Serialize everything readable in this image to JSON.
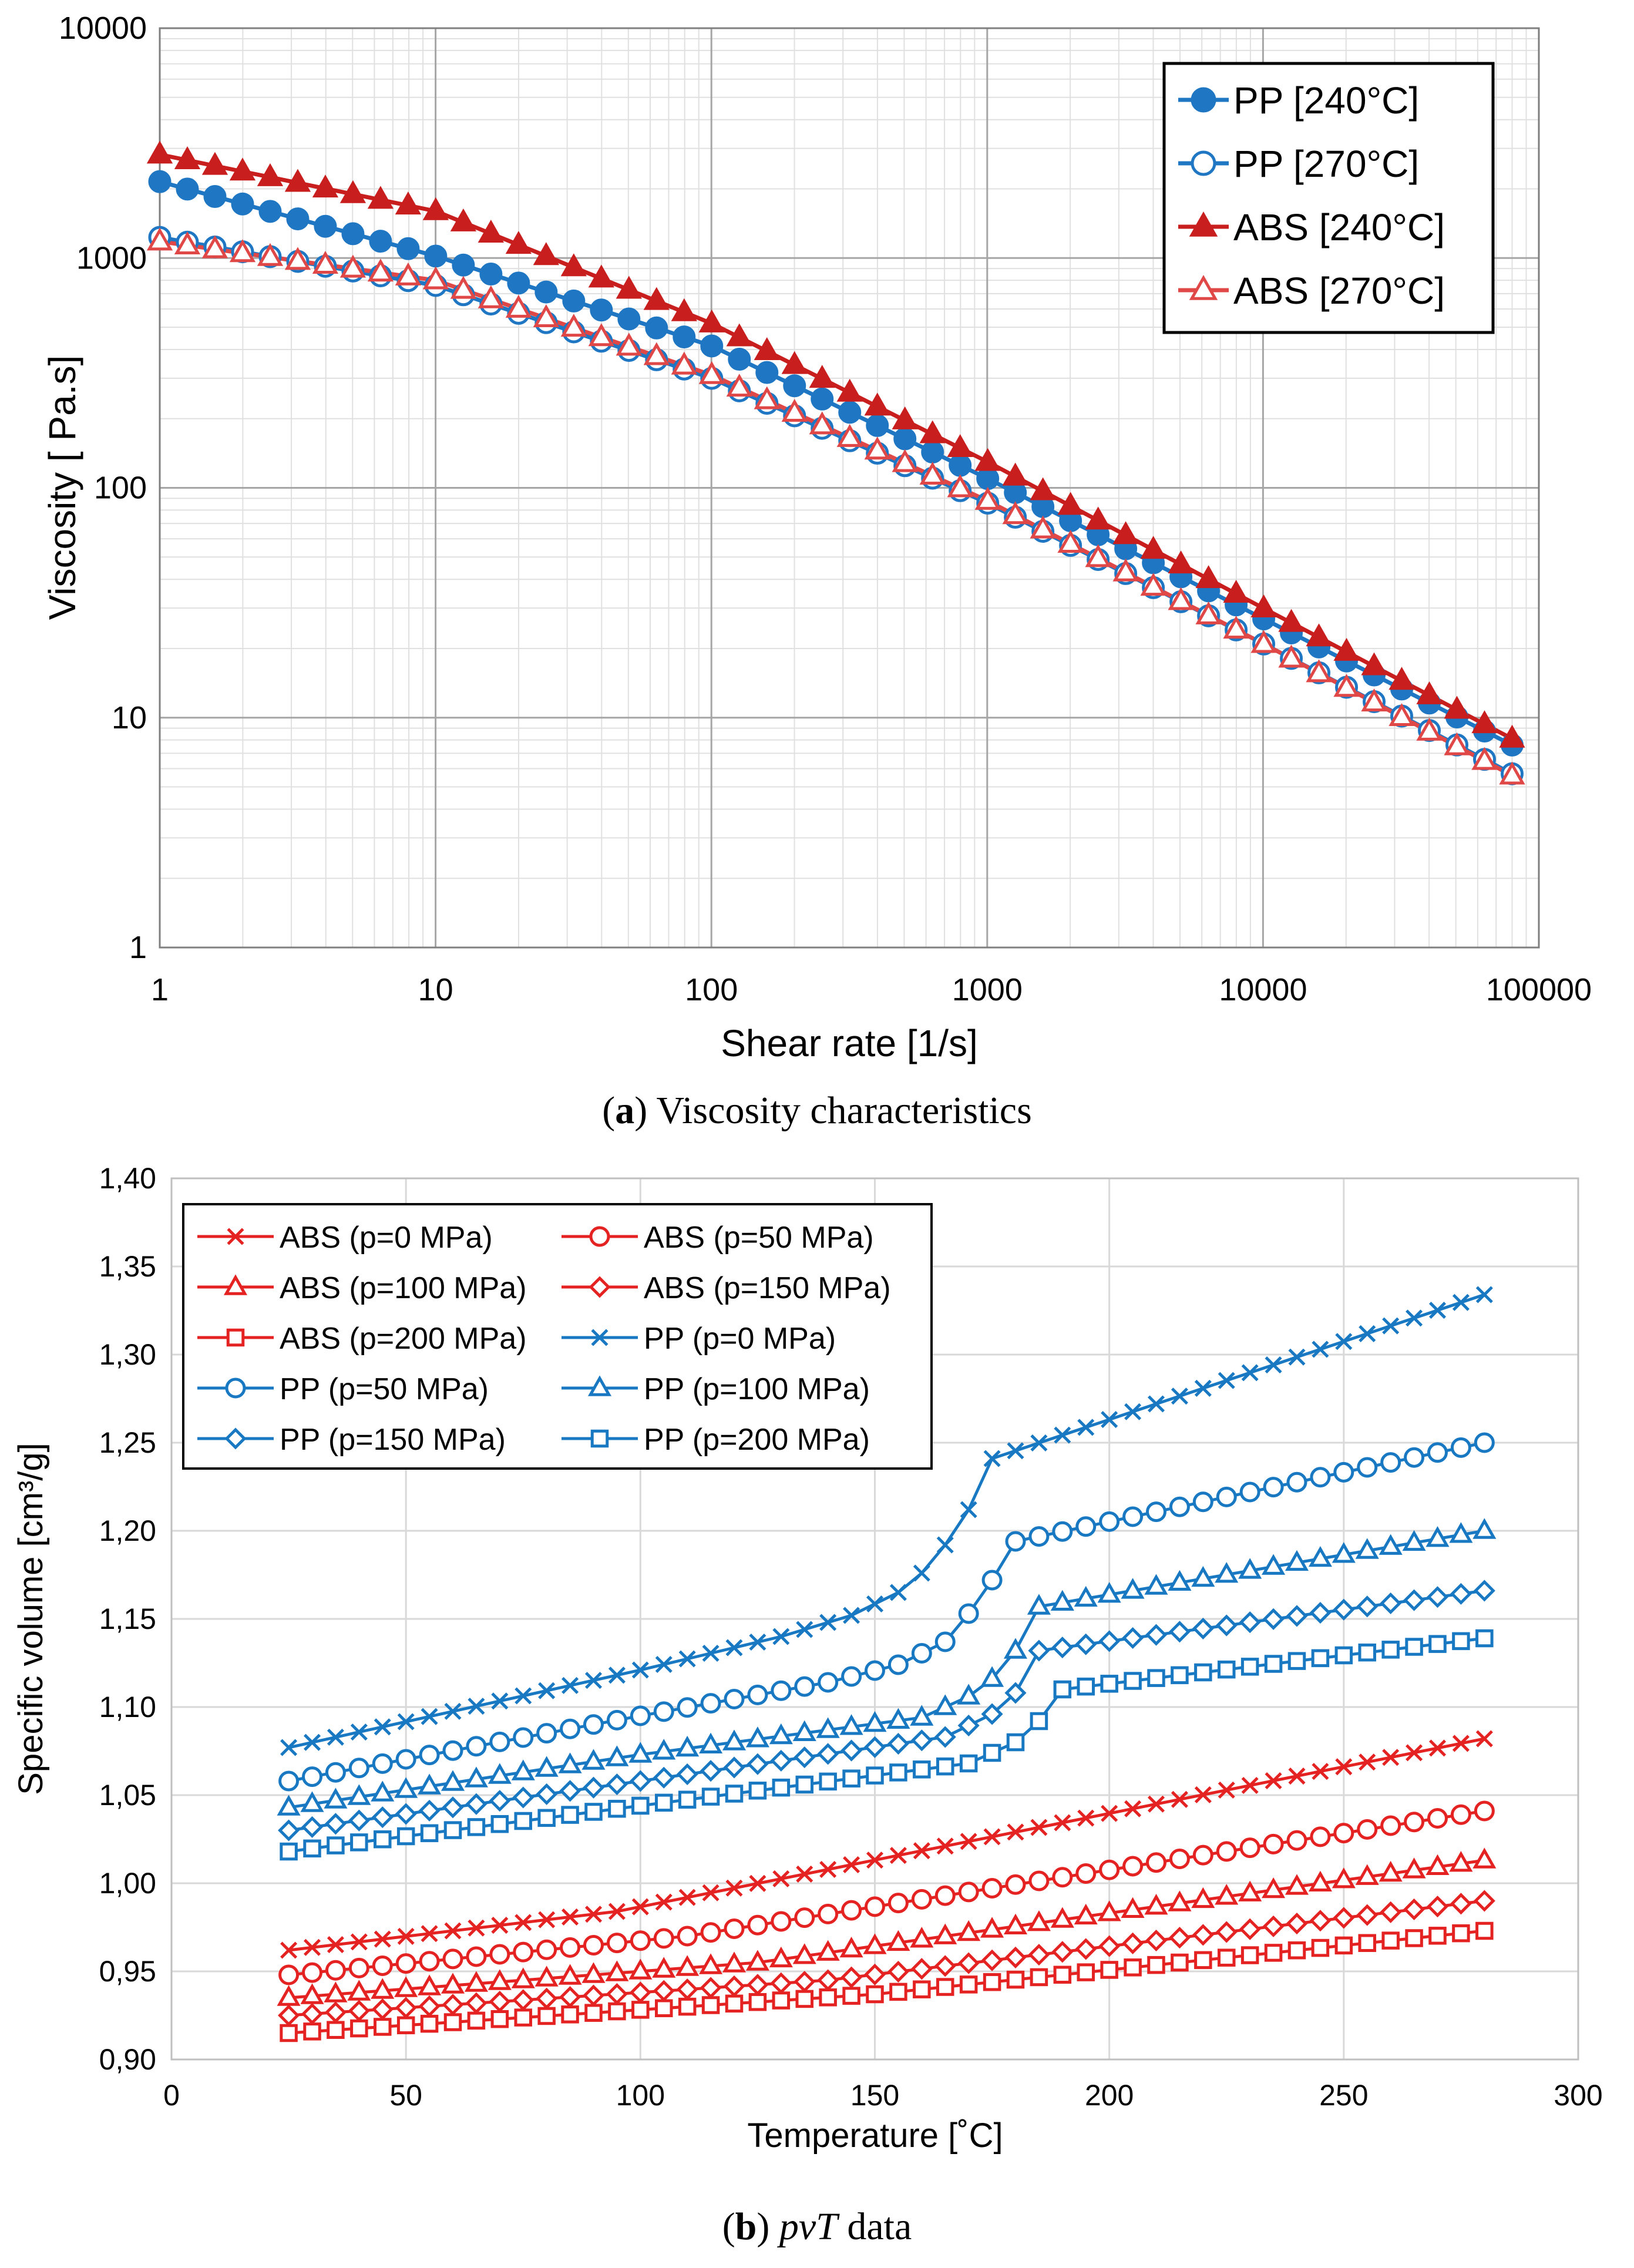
{
  "chart_data": [
    {
      "type": "line",
      "caption_label": "a",
      "caption_text": " Viscosity characteristics",
      "xlabel": "Shear rate [1/s]",
      "ylabel": "Viscosity [ Pa.s]",
      "xscale": "log",
      "yscale": "log",
      "xlim": [
        1,
        100000
      ],
      "ylim": [
        1,
        10000
      ],
      "x_ticks": [
        "1",
        "10",
        "100",
        "1000",
        "10000",
        "100000"
      ],
      "y_ticks": [
        "1",
        "10",
        "100",
        "1000",
        "10000"
      ],
      "grid": true,
      "legend_position": "top-right",
      "x_range": [
        1,
        80000
      ],
      "points_per_series": 50,
      "series": [
        {
          "name": "PP [240°C]",
          "color": "#1f77c4",
          "marker": "circle-filled",
          "x": [
            1,
            10,
            100,
            1000,
            10000,
            80000
          ],
          "values": [
            2150,
            1020,
            415,
            110,
            27,
            7.6
          ]
        },
        {
          "name": "PP [270°C]",
          "color": "#1f77c4",
          "marker": "circle-open",
          "x": [
            1,
            10,
            100,
            1000,
            10000,
            80000
          ],
          "values": [
            1230,
            760,
            300,
            86,
            21,
            5.7
          ]
        },
        {
          "name": "ABS [240°C]",
          "color": "#c81e1e",
          "marker": "triangle-filled",
          "x": [
            1,
            10,
            100,
            1000,
            10000,
            80000
          ],
          "values": [
            2820,
            1600,
            520,
            130,
            30,
            8.1
          ]
        },
        {
          "name": "ABS [270°C]",
          "color": "#e04848",
          "marker": "triangle-open",
          "x": [
            1,
            10,
            100,
            1000,
            10000,
            80000
          ],
          "values": [
            1180,
            800,
            310,
            88,
            21,
            5.6
          ]
        }
      ]
    },
    {
      "type": "line",
      "caption_label": "b",
      "caption_italic": "pvT",
      "caption_text": " data",
      "xlabel": "Temperature [˚C]",
      "ylabel": "Specific volume [cm³/g]",
      "xlim": [
        0,
        300
      ],
      "ylim": [
        0.9,
        1.4
      ],
      "x_ticks": [
        "0",
        "50",
        "100",
        "150",
        "200",
        "250",
        "300"
      ],
      "y_ticks": [
        "0,90",
        "0,95",
        "1,00",
        "1,05",
        "1,10",
        "1,15",
        "1,20",
        "1,25",
        "1,30",
        "1,35",
        "1,40"
      ],
      "grid": true,
      "legend_position": "top-left",
      "x_step": 5,
      "series": [
        {
          "name": "ABS (p=0 MPa)",
          "color": "#e52222",
          "marker": "x",
          "x": [
            25,
            95,
            280
          ],
          "values": [
            0.962,
            0.984,
            1.082
          ]
        },
        {
          "name": "ABS (p=50 MPa)",
          "color": "#e52222",
          "marker": "circle-open",
          "x": [
            25,
            110,
            280
          ],
          "values": [
            0.948,
            0.97,
            1.041
          ]
        },
        {
          "name": "ABS (p=100 MPa)",
          "color": "#e52222",
          "marker": "triangle-open",
          "x": [
            25,
            125,
            280
          ],
          "values": [
            0.935,
            0.955,
            1.013
          ]
        },
        {
          "name": "ABS (p=150 MPa)",
          "color": "#e52222",
          "marker": "diamond-open",
          "x": [
            25,
            140,
            280
          ],
          "values": [
            0.925,
            0.945,
            0.99
          ]
        },
        {
          "name": "ABS (p=200 MPa)",
          "color": "#e52222",
          "marker": "square-open",
          "x": [
            25,
            150,
            280
          ],
          "values": [
            0.915,
            0.937,
            0.973
          ]
        },
        {
          "name": "PP (p=0 MPa)",
          "color": "#1878c2",
          "marker": "x",
          "x": [
            25,
            100,
            130,
            145,
            155,
            160,
            165,
            170,
            175,
            280
          ],
          "values": [
            1.077,
            1.121,
            1.14,
            1.152,
            1.165,
            1.176,
            1.192,
            1.212,
            1.241,
            1.334
          ]
        },
        {
          "name": "PP (p=50 MPa)",
          "color": "#1878c2",
          "marker": "circle-open",
          "x": [
            25,
            100,
            140,
            155,
            165,
            170,
            175,
            180,
            280
          ],
          "values": [
            1.058,
            1.095,
            1.114,
            1.124,
            1.137,
            1.153,
            1.172,
            1.194,
            1.25
          ]
        },
        {
          "name": "PP (p=100 MPa)",
          "color": "#1878c2",
          "marker": "triangle-open",
          "x": [
            25,
            100,
            160,
            170,
            175,
            180,
            185,
            280
          ],
          "values": [
            1.043,
            1.073,
            1.094,
            1.106,
            1.116,
            1.132,
            1.157,
            1.2
          ]
        },
        {
          "name": "PP (p=150 MPa)",
          "color": "#1878c2",
          "marker": "diamond-open",
          "x": [
            25,
            100,
            165,
            175,
            180,
            185,
            280
          ],
          "values": [
            1.03,
            1.058,
            1.083,
            1.096,
            1.108,
            1.132,
            1.166
          ]
        },
        {
          "name": "PP (p=200 MPa)",
          "color": "#1878c2",
          "marker": "square-open",
          "x": [
            25,
            100,
            170,
            180,
            185,
            190,
            280
          ],
          "values": [
            1.018,
            1.044,
            1.068,
            1.08,
            1.092,
            1.11,
            1.139
          ]
        }
      ]
    }
  ]
}
